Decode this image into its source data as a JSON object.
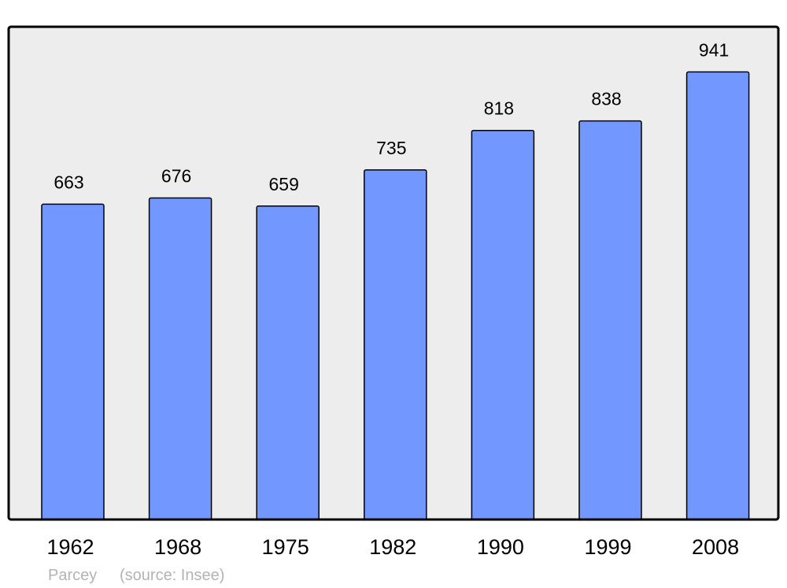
{
  "chart_data": {
    "type": "bar",
    "title": "",
    "xlabel": "",
    "ylabel": "",
    "categories": [
      "1962",
      "1968",
      "1975",
      "1982",
      "1990",
      "1999",
      "2008"
    ],
    "values": [
      663,
      676,
      659,
      735,
      818,
      838,
      941
    ],
    "ylim": [
      0,
      1036
    ],
    "grid": false,
    "data_labels": true,
    "colors": {
      "bar": "#7298ff",
      "plot_background": "#ededed",
      "border": "#000000"
    }
  },
  "footer": {
    "place": "Parcey",
    "source": "(source: Insee)"
  }
}
